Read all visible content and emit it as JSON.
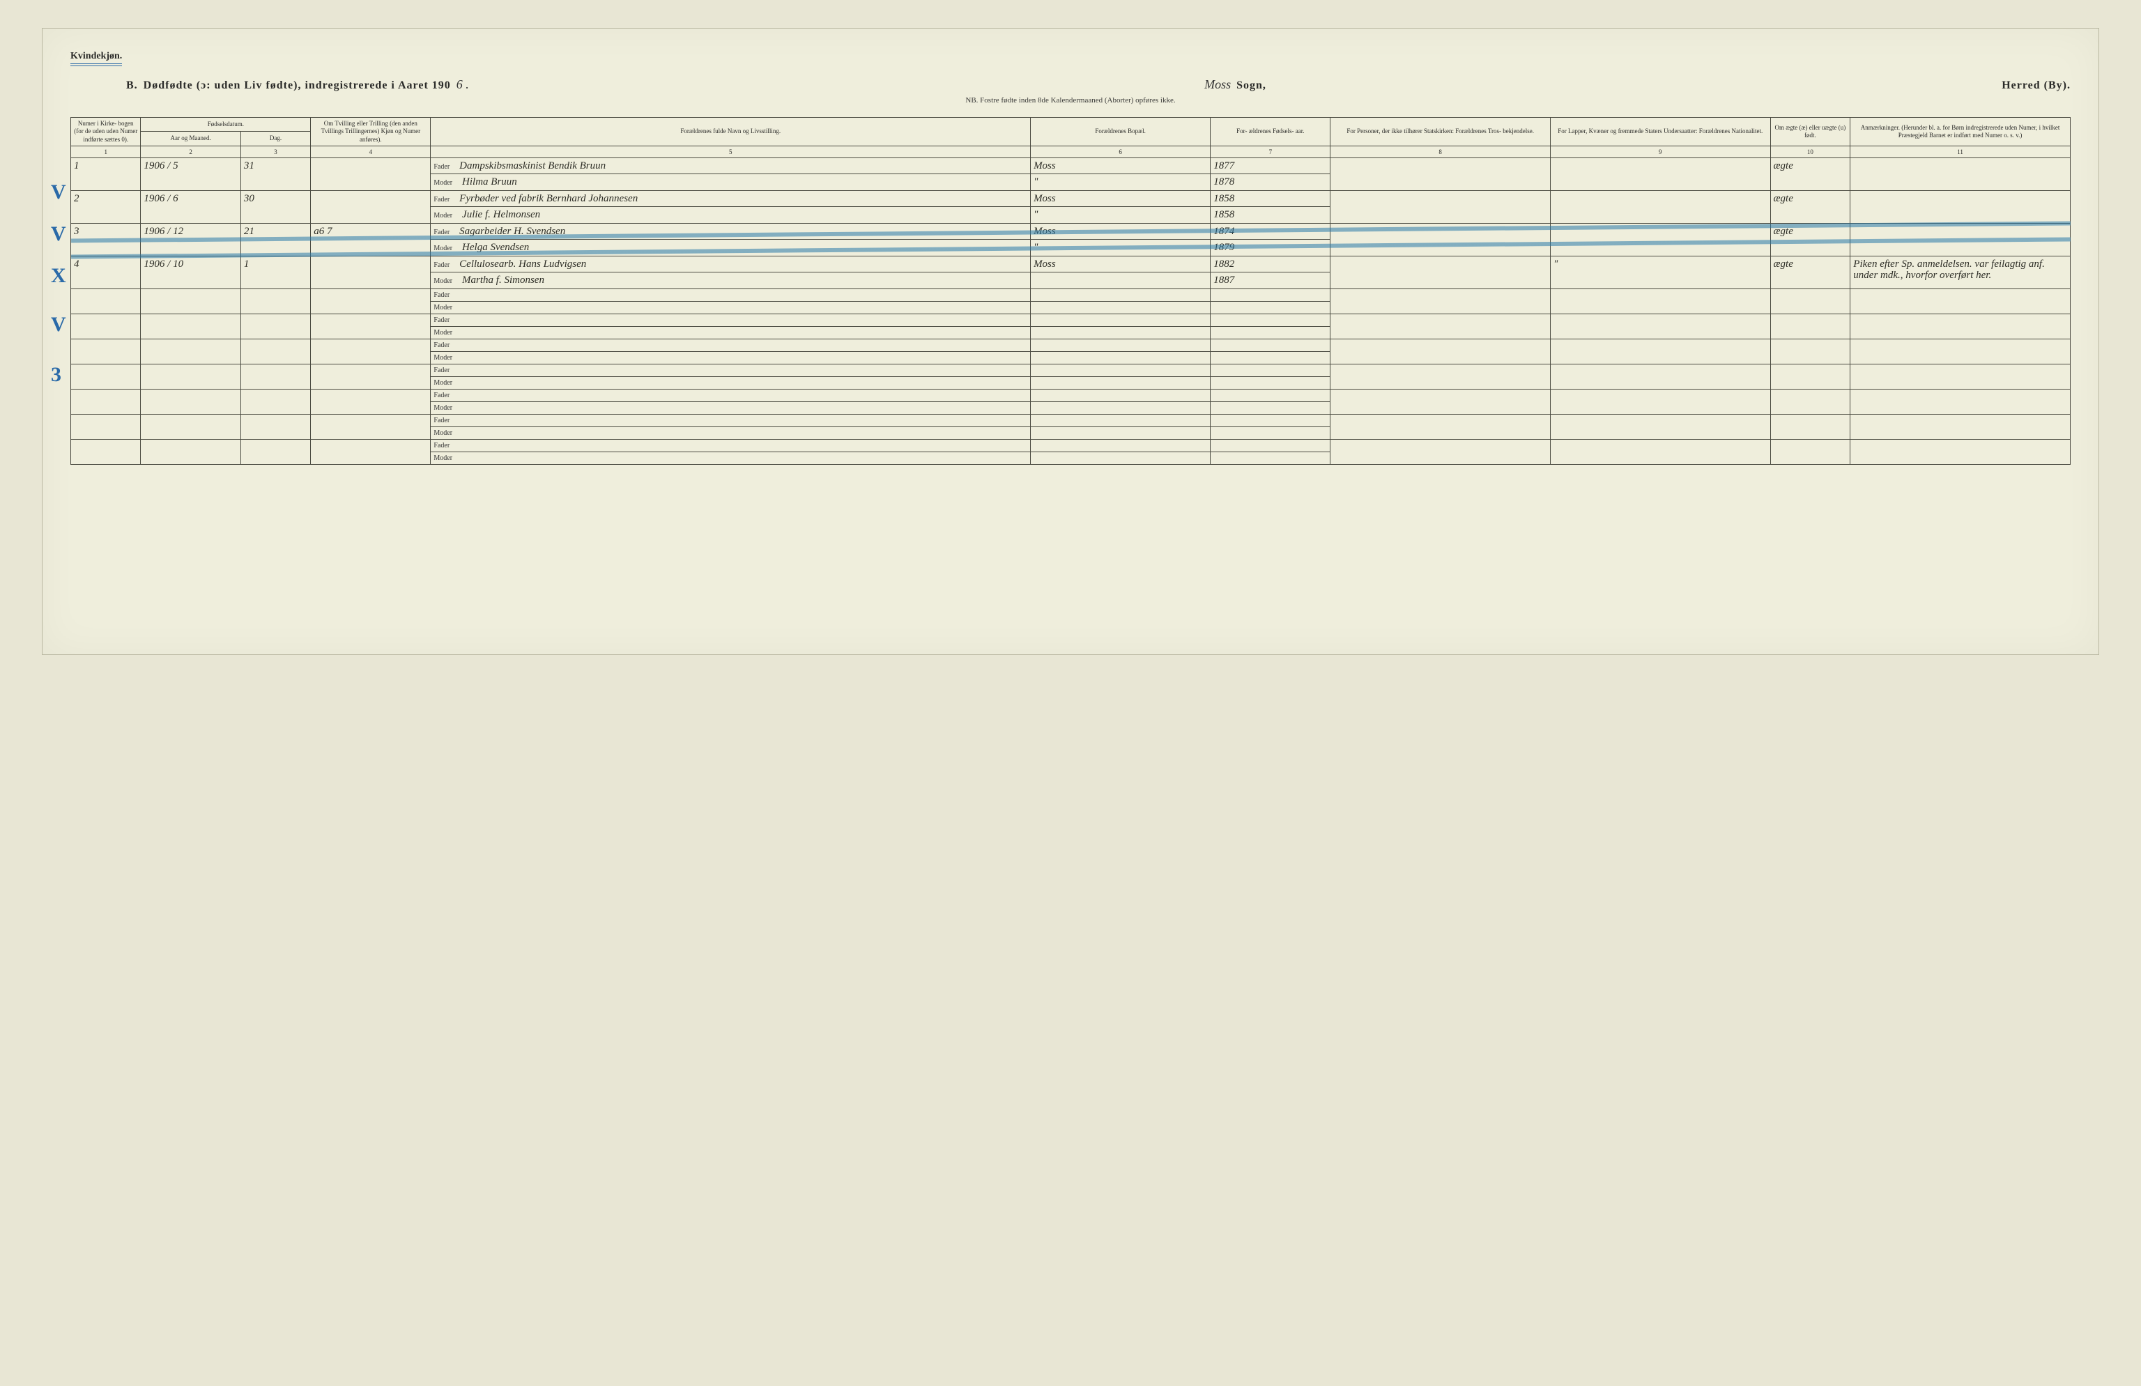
{
  "page": {
    "gender_label": "Kvindekjøn.",
    "title_prefix": "B.",
    "title_main": "Dødfødte (ɔ: uden Liv fødte), indregistrerede i Aaret 190",
    "year_suffix": "6 .",
    "sogn_hand": "Moss",
    "sogn_label": "Sogn,",
    "herred_label": "Herred (By).",
    "subtitle": "NB.  Fostre fødte inden 8de Kalendermaaned (Aborter) opføres ikke."
  },
  "columns": {
    "c1": "Numer i Kirke- bogen (for de uden uden Numer indførte sættes 0).",
    "c2_group": "Fødselsdatum.",
    "c2a": "Aar og Maaned.",
    "c2b": "Dag.",
    "c4": "Om Tvilling eller Trilling (den anden Tvillings Trillingernes) Kjøn og Numer anføres).",
    "c5": "Forældrenes fulde Navn og Livsstilling.",
    "c6": "Forældrenes Bopæl.",
    "c7": "For- ældrenes Fødsels- aar.",
    "c8": "For Personer, der ikke tilhører Statskirken: Forældrenes Tros- bekjendelse.",
    "c9": "For Lapper, Kvæner og fremmede Staters Undersaatter: Forældrenes Nationalitet.",
    "c10": "Om ægte (æ) eller uægte (u) født.",
    "c11": "Anmærkninger. (Herunder bl. a. for Børn indregistrerede uden Numer, i hvilket Præstegjeld Barnet er indført med Numer o. s. v.)"
  },
  "colnums": [
    "1",
    "2",
    "3",
    "4",
    "5",
    "6",
    "7",
    "8",
    "9",
    "10",
    "11"
  ],
  "labels": {
    "fader": "Fader",
    "moder": "Moder"
  },
  "margin_marks": [
    "V",
    "V",
    "X",
    "V",
    "3"
  ],
  "entries": [
    {
      "num": "1",
      "year_month": "1906 / 5",
      "day": "31",
      "twins": "",
      "fader": "Dampskibsmaskinist Bendik Bruun",
      "moder": "Hilma Bruun",
      "bopael": "Moss",
      "bopael2": "\"",
      "fy_f": "1877",
      "fy_m": "1878",
      "c8": "",
      "c9": "",
      "aegte": "ægte",
      "anm": ""
    },
    {
      "num": "2",
      "year_month": "1906 / 6",
      "day": "30",
      "twins": "",
      "fader": "Fyrbøder ved fabrik Bernhard Johannesen",
      "moder": "Julie f. Helmonsen",
      "bopael": "Moss",
      "bopael2": "\"",
      "fy_f": "1858",
      "fy_m": "1858",
      "c8": "",
      "c9": "",
      "aegte": "ægte",
      "anm": ""
    },
    {
      "num": "3",
      "year_month": "1906 / 12",
      "day": "21",
      "twins": "a6 7",
      "fader": "Sagarbeider H. Svendsen",
      "moder": "Helga Svendsen",
      "bopael": "Moss",
      "bopael2": "\"",
      "fy_f": "1874",
      "fy_m": "1879",
      "c8": "",
      "c9": "",
      "aegte": "ægte",
      "anm": ""
    },
    {
      "num": "4",
      "year_month": "1906 / 10",
      "day": "1",
      "twins": "",
      "fader": "Cellulosearb. Hans Ludvigsen",
      "moder": "Martha f. Simonsen",
      "bopael": "Moss",
      "bopael2": "",
      "fy_f": "1882",
      "fy_m": "1887",
      "c8": "",
      "c9": "\"",
      "aegte": "ægte",
      "anm": "Piken efter Sp. anmeldelsen. var feilagtig anf. under mdk., hvorfor overført her."
    }
  ],
  "blank_rows": 7,
  "col_widths_pct": [
    3.5,
    5,
    3.5,
    6,
    30,
    9,
    6,
    11,
    11,
    4,
    11
  ],
  "colors": {
    "paper": "#efeedc",
    "ink": "#2a2a28",
    "rule": "#4a4a40",
    "blue_pencil": "#2a6aa8"
  },
  "fonts": {
    "print_family": "Georgia, 'Times New Roman', serif",
    "hand_family": "'Brush Script MT', 'Segoe Script', cursive",
    "header_pt": 9,
    "body_pt": 10,
    "hand_pt": 15
  }
}
